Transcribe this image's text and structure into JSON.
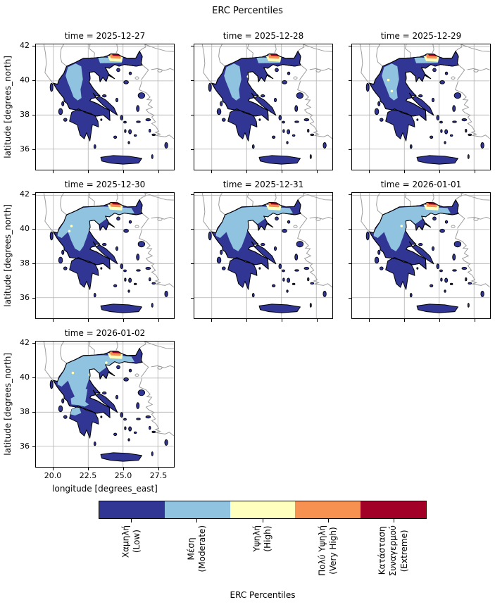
{
  "figure": {
    "title": "ERC Percentiles"
  },
  "axes": {
    "ylabel": "latitude [degrees_north]",
    "xlabel": "longitude [degrees_east]",
    "x_ticks": [
      "20.0",
      "22.5",
      "25.0",
      "27.5"
    ],
    "y_ticks": [
      "42",
      "40",
      "38",
      "36"
    ]
  },
  "panels": [
    {
      "title": "time = 2025-12-27",
      "row": 0,
      "col": 0,
      "variant": "a",
      "dots": []
    },
    {
      "title": "time = 2025-12-28",
      "row": 0,
      "col": 1,
      "variant": "a",
      "dots": [
        [
          22.6,
          40.25,
          "high"
        ]
      ]
    },
    {
      "title": "time = 2025-12-29",
      "row": 0,
      "col": 2,
      "variant": "a",
      "dots": [
        [
          21.35,
          40.05,
          "high"
        ],
        [
          21.6,
          39.4,
          "high"
        ]
      ]
    },
    {
      "title": "time = 2025-12-30",
      "row": 1,
      "col": 0,
      "variant": "b",
      "dots": [
        [
          21.3,
          40.2,
          "high"
        ],
        [
          21.15,
          39.9,
          "high"
        ]
      ]
    },
    {
      "title": "time = 2025-12-31",
      "row": 1,
      "col": 1,
      "variant": "b",
      "dots": []
    },
    {
      "title": "time = 2026-01-01",
      "row": 1,
      "col": 2,
      "variant": "b",
      "dots": [
        [
          22.3,
          40.2,
          "high"
        ]
      ]
    },
    {
      "title": "time = 2026-01-02",
      "row": 2,
      "col": 0,
      "variant": "c",
      "dots": [
        [
          20.12,
          39.9,
          "very_high"
        ],
        [
          21.4,
          40.3,
          "high"
        ],
        [
          22.6,
          40.2,
          "high"
        ],
        [
          23.8,
          40.9,
          "high"
        ]
      ]
    }
  ],
  "colorbar": {
    "label": "ERC Percentiles",
    "classes": [
      {
        "key": "low",
        "color": "#313695",
        "lines": [
          "Χαμηλή",
          "(Low)"
        ]
      },
      {
        "key": "moderate",
        "color": "#8fc3df",
        "lines": [
          "Μέση",
          "(Moderate)"
        ]
      },
      {
        "key": "high",
        "color": "#ffffbe",
        "lines": [
          "Υψηλή",
          "(High)"
        ]
      },
      {
        "key": "very_high",
        "color": "#f79152",
        "lines": [
          "Πολύ Υψηλή",
          "(Very High)"
        ]
      },
      {
        "key": "extreme",
        "color": "#a30027",
        "lines": [
          "Κατάσταση",
          "Συναγερμού",
          "(Extreme)"
        ]
      }
    ]
  },
  "map_colors": {
    "low": "#313695",
    "moderate": "#8fc3df",
    "high": "#ffffbe",
    "very_high": "#f79152",
    "extreme": "#a30027",
    "coast": "#000000",
    "neighbor": "#9c9c9c",
    "grid": "#b0b0b0"
  },
  "chart_data": {
    "type": "heatmap",
    "subtype": "faceted-choropleth-maps",
    "title": "ERC Percentiles",
    "region": "Greece",
    "facet_dimension": "time",
    "facets": [
      "2025-12-27",
      "2025-12-28",
      "2025-12-29",
      "2025-12-30",
      "2025-12-31",
      "2026-01-01",
      "2026-01-02"
    ],
    "xlabel": "longitude [degrees_east]",
    "ylabel": "latitude [degrees_north]",
    "xlim": [
      18.75,
      28.65
    ],
    "ylim": [
      34.79,
      42.14
    ],
    "x_ticks": [
      20.0,
      22.5,
      25.0,
      27.5
    ],
    "y_ticks": [
      36,
      38,
      40,
      42
    ],
    "grid": true,
    "legend_position": "bottom-colorbar",
    "categories": [
      "Χαμηλή (Low)",
      "Μέση (Moderate)",
      "Υψηλή (High)",
      "Πολύ Υψηλή (Very High)",
      "Κατάσταση Συναγερμού (Extreme)"
    ],
    "category_colors": [
      "#313695",
      "#8fc3df",
      "#ffffbe",
      "#f79152",
      "#a30027"
    ],
    "summary_per_facet": [
      {
        "time": "2025-12-27",
        "dominant": "low",
        "moderate_area": "northwest and central-west mainland, band along northern border",
        "warm_spot": "small high/very-high/extreme patch at northern border near 24.5E, 41.5N"
      },
      {
        "time": "2025-12-28",
        "dominant": "low",
        "moderate_area": "northwest and central-west mainland, band along northern border",
        "warm_spot": "small high/very-high/extreme patch at northern border"
      },
      {
        "time": "2025-12-29",
        "dominant": "low",
        "moderate_area": "northwest/central-west mainland with small high spots",
        "warm_spot": "high/very-high/extreme patch at northern border"
      },
      {
        "time": "2025-12-30",
        "dominant": "low",
        "moderate_area": "entire northern mainland and western column to ~38.7N",
        "warm_spot": "high/very-high/extreme patch at northern border"
      },
      {
        "time": "2025-12-31",
        "dominant": "low",
        "moderate_area": "entire northern mainland and western column",
        "warm_spot": "high/very-high/extreme patch at northern border"
      },
      {
        "time": "2026-01-01",
        "dominant": "low",
        "moderate_area": "entire northern mainland and western column",
        "warm_spot": "high/very-high/extreme patch at northern border"
      },
      {
        "time": "2026-01-02",
        "dominant": "moderate-north / low-south",
        "moderate_area": "north and central Greece down to Gulf of Corinth, NW Peloponnese patch",
        "warm_spot": "high/very-high/extreme patch at northern border, very-high dot on NW coast"
      }
    ]
  }
}
